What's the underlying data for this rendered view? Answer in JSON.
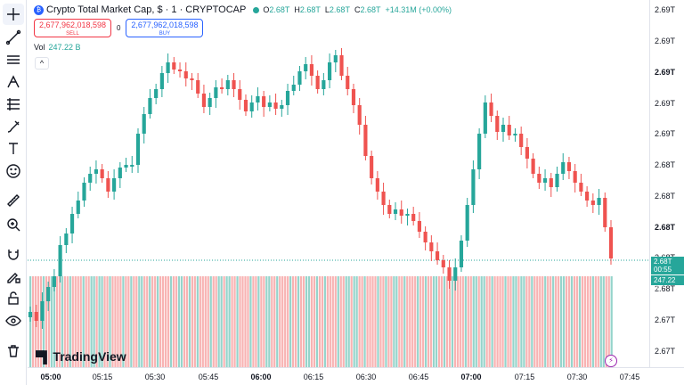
{
  "symbol": {
    "icon": "circle-symbol-icon",
    "title": "Crypto Total Market Cap, $ · 1 · CRYPTOCAP",
    "status_color": "#26a69a",
    "ohlc": [
      {
        "k": "O",
        "v": "2.68T"
      },
      {
        "k": "H",
        "v": "2.68T"
      },
      {
        "k": "L",
        "v": "2.68T"
      },
      {
        "k": "C",
        "v": "2.68T"
      }
    ],
    "change": "+14.31M (+0.00%)"
  },
  "trade": {
    "sell_price": "2,677,962,018,598",
    "sell_label": "SELL",
    "spread": "0",
    "buy_price": "2,677,962,018,598",
    "buy_label": "BUY"
  },
  "volume": {
    "label": "Vol",
    "value": "247.22 B"
  },
  "collapse": "^",
  "price_axis": {
    "ticks": [
      "2.69T",
      "2.69T",
      "2.69T",
      "2.69T",
      "2.69T",
      "2.68T",
      "2.68T",
      "2.68T",
      "2.68T",
      "2.68T",
      "2.67T",
      "2.67T"
    ],
    "current_price": "2.68T",
    "countdown": "00:55",
    "current_volume": "247.22 B"
  },
  "time_axis": [
    "05:00",
    "05:15",
    "05:30",
    "05:45",
    "06:00",
    "06:15",
    "06:30",
    "06:45",
    "07:00",
    "07:15",
    "07:30",
    "07:45"
  ],
  "logo_text": "TradingView",
  "colors": {
    "up": "#26a69a",
    "down": "#ef5350",
    "vol_up": "#95d4cb",
    "vol_down": "#f8b3b3",
    "accent": "#2962ff"
  },
  "chart_data": {
    "type": "candlestick",
    "y_axis_ticks": [
      "2.69T",
      "2.69T",
      "2.69T",
      "2.69T",
      "2.69T",
      "2.68T",
      "2.68T",
      "2.68T",
      "2.68T",
      "2.68T",
      "2.67T",
      "2.67T"
    ],
    "x_axis_ticks": [
      "05:00",
      "05:15",
      "05:30",
      "05:45",
      "06:00",
      "06:15",
      "06:30",
      "06:45",
      "07:00",
      "07:15",
      "07:30",
      "07:45"
    ],
    "close_path": [
      [
        0,
        350
      ],
      [
        1,
        360
      ],
      [
        2,
        338
      ],
      [
        3,
        322
      ],
      [
        4,
        310
      ],
      [
        5,
        275
      ],
      [
        6,
        262
      ],
      [
        7,
        240
      ],
      [
        8,
        225
      ],
      [
        9,
        205
      ],
      [
        10,
        195
      ],
      [
        11,
        190
      ],
      [
        12,
        200
      ],
      [
        13,
        215
      ],
      [
        14,
        200
      ],
      [
        15,
        188
      ],
      [
        16,
        185
      ],
      [
        17,
        185
      ],
      [
        18,
        150
      ],
      [
        19,
        128
      ],
      [
        20,
        110
      ],
      [
        21,
        100
      ],
      [
        22,
        82
      ],
      [
        23,
        70
      ],
      [
        24,
        78
      ],
      [
        25,
        80
      ],
      [
        26,
        88
      ],
      [
        27,
        90
      ],
      [
        28,
        105
      ],
      [
        29,
        120
      ],
      [
        30,
        110
      ],
      [
        31,
        98
      ],
      [
        32,
        100
      ],
      [
        33,
        90
      ],
      [
        34,
        100
      ],
      [
        35,
        112
      ],
      [
        36,
        125
      ],
      [
        37,
        115
      ],
      [
        38,
        108
      ],
      [
        39,
        120
      ],
      [
        40,
        115
      ],
      [
        41,
        122
      ],
      [
        42,
        118
      ],
      [
        43,
        102
      ],
      [
        44,
        95
      ],
      [
        45,
        80
      ],
      [
        46,
        72
      ],
      [
        47,
        85
      ],
      [
        48,
        100
      ],
      [
        49,
        90
      ],
      [
        50,
        70
      ],
      [
        51,
        62
      ],
      [
        52,
        85
      ],
      [
        53,
        100
      ],
      [
        54,
        118
      ],
      [
        55,
        140
      ],
      [
        56,
        175
      ],
      [
        57,
        200
      ],
      [
        58,
        215
      ],
      [
        59,
        230
      ],
      [
        60,
        240
      ],
      [
        61,
        235
      ],
      [
        62,
        242
      ],
      [
        63,
        240
      ],
      [
        64,
        248
      ],
      [
        65,
        260
      ],
      [
        66,
        272
      ],
      [
        67,
        282
      ],
      [
        68,
        292
      ],
      [
        69,
        300
      ],
      [
        70,
        315
      ],
      [
        71,
        300
      ],
      [
        72,
        270
      ],
      [
        73,
        230
      ],
      [
        74,
        190
      ],
      [
        75,
        150
      ],
      [
        76,
        115
      ],
      [
        77,
        130
      ],
      [
        78,
        148
      ],
      [
        79,
        140
      ],
      [
        80,
        152
      ],
      [
        81,
        150
      ],
      [
        82,
        165
      ],
      [
        83,
        178
      ],
      [
        84,
        195
      ],
      [
        85,
        205
      ],
      [
        86,
        200
      ],
      [
        87,
        210
      ],
      [
        88,
        195
      ],
      [
        89,
        182
      ],
      [
        90,
        192
      ],
      [
        91,
        205
      ],
      [
        92,
        215
      ],
      [
        93,
        225
      ],
      [
        94,
        230
      ],
      [
        95,
        222
      ],
      [
        96,
        255
      ],
      [
        97,
        290
      ]
    ],
    "last_volume": "247.22 B"
  }
}
